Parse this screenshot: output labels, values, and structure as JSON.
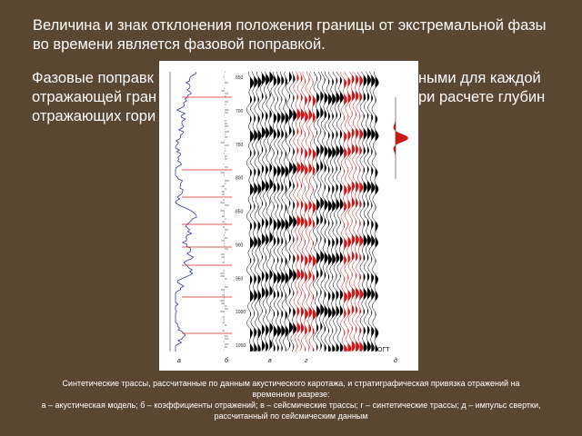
{
  "header": {
    "text": "Величина и знак отклонения положения границы от экстремальной фазы во времени является фазовой поправкой."
  },
  "paragraph": {
    "lines": [
      {
        "left": "Фазовые поправк",
        "right": "ными для каждой"
      },
      {
        "left": "отражающей гран",
        "right": "ри расчете глубин"
      },
      {
        "left": "отражающих гори",
        "right": null
      }
    ]
  },
  "figure": {
    "panels": [
      "а",
      "б",
      "в",
      "г",
      "д"
    ],
    "time_labels": [
      "650",
      "700",
      "750",
      "800",
      "850",
      "900",
      "950",
      "1000",
      "1050"
    ],
    "cdp_label": "ОГТ"
  },
  "caption": {
    "title": "Синтетические трассы, рассчитанные по данным акустического каротажа, и стратиграфическая привязка отражений на временном разрезе:",
    "legend": "а – акустическая модель; б – коэффициенты отражений; в – сейсмические трассы; г – синтетические трассы; д – импульс свертки, рассчитанный по сейсмическим данным"
  }
}
